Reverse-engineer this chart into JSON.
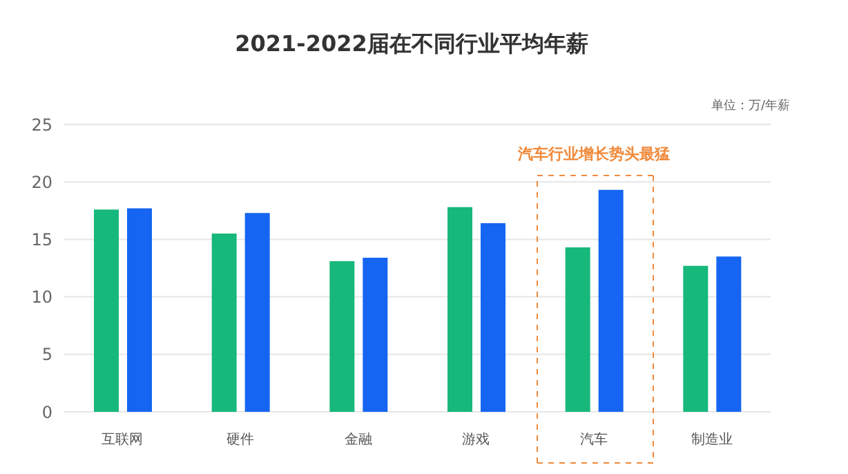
{
  "chart_data": {
    "type": "bar",
    "title": "2021-2022届在不同行业平均年薪",
    "ylabel": "单位：万/年薪",
    "categories": [
      "互联网",
      "硬件",
      "金融",
      "游戏",
      "汽车",
      "制造业"
    ],
    "series": [
      {
        "color": "#17b87b",
        "values": [
          17.6,
          15.5,
          13.1,
          17.8,
          14.3,
          12.7
        ]
      },
      {
        "color": "#1565f2",
        "values": [
          17.7,
          17.3,
          13.4,
          16.4,
          19.3,
          13.5
        ]
      }
    ],
    "ylim": [
      0,
      25
    ],
    "yticks": [
      0,
      5,
      10,
      15,
      20,
      25
    ],
    "grid": "y",
    "annotations": [
      "汽车行业增长势头最猛"
    ]
  }
}
